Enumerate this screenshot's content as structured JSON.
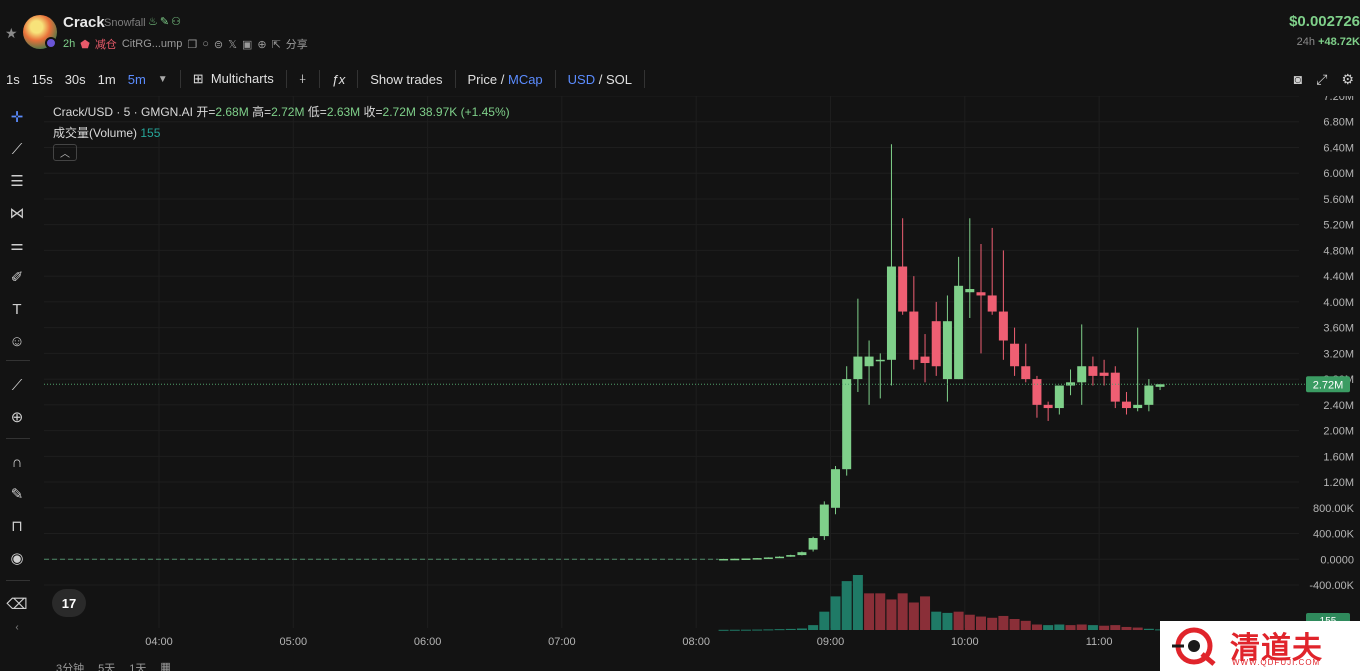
{
  "token": {
    "name": "Crack",
    "subname": "Snowfall",
    "age": "2h",
    "tag": "减仓",
    "address": "CitRG...ump",
    "share": "分享",
    "price": "$0.002726",
    "change_label": "24h",
    "change_value": "+48.72K"
  },
  "toolbar": {
    "intervals": [
      "1s",
      "15s",
      "30s",
      "1m",
      "5m"
    ],
    "active_interval": "5m",
    "multicharts": "Multicharts",
    "show_trades": "Show trades",
    "price_label": "Price",
    "mcap_label": "MCap",
    "usd_label": "USD",
    "sol_label": "SOL"
  },
  "legend": {
    "symbol": "Crack/USD · 5 · GMGN.AI",
    "open_label": "开=",
    "open": "2.68M",
    "high_label": "高=",
    "high": "2.72M",
    "low_label": "低=",
    "low": "2.63M",
    "close_label": "收=",
    "close": "2.72M",
    "vol": "38.97K",
    "pct": "(+1.45%)",
    "volume_label": "成交量(Volume)",
    "volume_value": "155",
    "last_price_tag": "2.72M",
    "last_volume_tag": "155"
  },
  "colors": {
    "up": "#7fd08a",
    "down": "#ef5f73",
    "vol_up": "#1f7a66",
    "vol_down": "#8a2f38",
    "accent": "#5b8cff"
  },
  "bottom_bar": {
    "items": [
      "3分钟",
      "5天",
      "1天"
    ]
  },
  "watermark": {
    "text": "清道夫",
    "url": "WWW.QDFUJI.COM"
  },
  "chart_data": {
    "type": "candlestick",
    "y_ticks": [
      "7.20M",
      "6.80M",
      "6.40M",
      "6.00M",
      "5.60M",
      "5.20M",
      "4.80M",
      "4.40M",
      "4.00M",
      "3.60M",
      "3.20M",
      "2.80M",
      "2.40M",
      "2.00M",
      "1.60M",
      "1.20M",
      "800.00K",
      "400.00K",
      "0.0000",
      "-400.00K"
    ],
    "x_ticks": [
      "04:00",
      "05:00",
      "06:00",
      "07:00",
      "08:00",
      "09:00",
      "10:00",
      "11:00"
    ],
    "ylim": [
      -400000,
      7200000
    ],
    "last_value": 2720000,
    "candles": [
      {
        "t": "08:10",
        "o": 2000,
        "h": 6000,
        "l": 1000,
        "c": 5000
      },
      {
        "t": "08:15",
        "o": 5000,
        "h": 8000,
        "l": 4000,
        "c": 8000
      },
      {
        "t": "08:20",
        "o": 8000,
        "h": 12000,
        "l": 7000,
        "c": 12000
      },
      {
        "t": "08:25",
        "o": 12000,
        "h": 20000,
        "l": 10000,
        "c": 18000
      },
      {
        "t": "08:30",
        "o": 18000,
        "h": 30000,
        "l": 16000,
        "c": 28000
      },
      {
        "t": "08:35",
        "o": 28000,
        "h": 45000,
        "l": 25000,
        "c": 40000
      },
      {
        "t": "08:40",
        "o": 40000,
        "h": 70000,
        "l": 38000,
        "c": 65000
      },
      {
        "t": "08:45",
        "o": 65000,
        "h": 120000,
        "l": 60000,
        "c": 110000
      },
      {
        "t": "08:50",
        "o": 150000,
        "h": 350000,
        "l": 120000,
        "c": 330000
      },
      {
        "t": "08:55",
        "o": 360000,
        "h": 900000,
        "l": 300000,
        "c": 850000
      },
      {
        "t": "09:00",
        "o": 800000,
        "h": 1450000,
        "l": 700000,
        "c": 1400000
      },
      {
        "t": "09:05",
        "o": 1400000,
        "h": 3000000,
        "l": 1300000,
        "c": 2800000
      },
      {
        "t": "09:10",
        "o": 2800000,
        "h": 4050000,
        "l": 2600000,
        "c": 3150000
      },
      {
        "t": "09:15",
        "o": 3000000,
        "h": 3400000,
        "l": 2400000,
        "c": 3150000
      },
      {
        "t": "09:20",
        "o": 3100000,
        "h": 3200000,
        "l": 2500000,
        "c": 3100000
      },
      {
        "t": "09:25",
        "o": 3100000,
        "h": 6450000,
        "l": 2700000,
        "c": 4550000
      },
      {
        "t": "09:30",
        "o": 4550000,
        "h": 5300000,
        "l": 3800000,
        "c": 3850000
      },
      {
        "t": "09:35",
        "o": 3850000,
        "h": 4400000,
        "l": 2950000,
        "c": 3100000
      },
      {
        "t": "09:40",
        "o": 3150000,
        "h": 3500000,
        "l": 2750000,
        "c": 3050000
      },
      {
        "t": "09:45",
        "o": 3700000,
        "h": 4000000,
        "l": 2850000,
        "c": 3000000
      },
      {
        "t": "09:50",
        "o": 2800000,
        "h": 4100000,
        "l": 2450000,
        "c": 3700000
      },
      {
        "t": "09:55",
        "o": 2800000,
        "h": 4700000,
        "l": 2800000,
        "c": 4250000
      },
      {
        "t": "10:00",
        "o": 4150000,
        "h": 5300000,
        "l": 3750000,
        "c": 4200000
      },
      {
        "t": "10:05",
        "o": 4150000,
        "h": 4900000,
        "l": 3200000,
        "c": 4100000
      },
      {
        "t": "10:10",
        "o": 4100000,
        "h": 5150000,
        "l": 3800000,
        "c": 3850000
      },
      {
        "t": "10:15",
        "o": 3850000,
        "h": 4800000,
        "l": 3100000,
        "c": 3400000
      },
      {
        "t": "10:20",
        "o": 3350000,
        "h": 3600000,
        "l": 2850000,
        "c": 3000000
      },
      {
        "t": "10:25",
        "o": 3000000,
        "h": 3350000,
        "l": 2750000,
        "c": 2800000
      },
      {
        "t": "10:30",
        "o": 2800000,
        "h": 2850000,
        "l": 2200000,
        "c": 2400000
      },
      {
        "t": "10:35",
        "o": 2400000,
        "h": 2450000,
        "l": 2150000,
        "c": 2350000
      },
      {
        "t": "10:40",
        "o": 2350000,
        "h": 2700000,
        "l": 2250000,
        "c": 2700000
      },
      {
        "t": "10:45",
        "o": 2700000,
        "h": 2950000,
        "l": 2550000,
        "c": 2750000
      },
      {
        "t": "10:50",
        "o": 2750000,
        "h": 3650000,
        "l": 2400000,
        "c": 3000000
      },
      {
        "t": "10:55",
        "o": 3000000,
        "h": 3150000,
        "l": 2700000,
        "c": 2850000
      },
      {
        "t": "11:00",
        "o": 2900000,
        "h": 3100000,
        "l": 2700000,
        "c": 2850000
      },
      {
        "t": "11:05",
        "o": 2900000,
        "h": 3000000,
        "l": 2350000,
        "c": 2450000
      },
      {
        "t": "11:10",
        "o": 2450000,
        "h": 2600000,
        "l": 2250000,
        "c": 2350000
      },
      {
        "t": "11:15",
        "o": 2350000,
        "h": 3600000,
        "l": 2300000,
        "c": 2400000
      },
      {
        "t": "11:20",
        "o": 2400000,
        "h": 2800000,
        "l": 2300000,
        "c": 2700000
      },
      {
        "t": "11:25",
        "o": 2680000,
        "h": 2720000,
        "l": 2630000,
        "c": 2720000
      }
    ],
    "volume": {
      "ylim": [
        0,
        1800000
      ],
      "values": [
        3000,
        4000,
        5000,
        7000,
        10000,
        14000,
        18000,
        25000,
        80000,
        300000,
        550000,
        800000,
        900000,
        600000,
        600000,
        500000,
        600000,
        450000,
        550000,
        300000,
        280000,
        300000,
        250000,
        220000,
        200000,
        230000,
        180000,
        150000,
        90000,
        80000,
        90000,
        80000,
        90000,
        80000,
        70000,
        80000,
        50000,
        40000,
        20000,
        10000
      ],
      "up": [
        true,
        true,
        true,
        true,
        true,
        true,
        true,
        true,
        true,
        true,
        true,
        true,
        true,
        false,
        false,
        false,
        false,
        false,
        false,
        true,
        true,
        false,
        false,
        false,
        false,
        false,
        false,
        false,
        false,
        true,
        true,
        false,
        false,
        true,
        false,
        false,
        false,
        false,
        true,
        true
      ]
    }
  }
}
